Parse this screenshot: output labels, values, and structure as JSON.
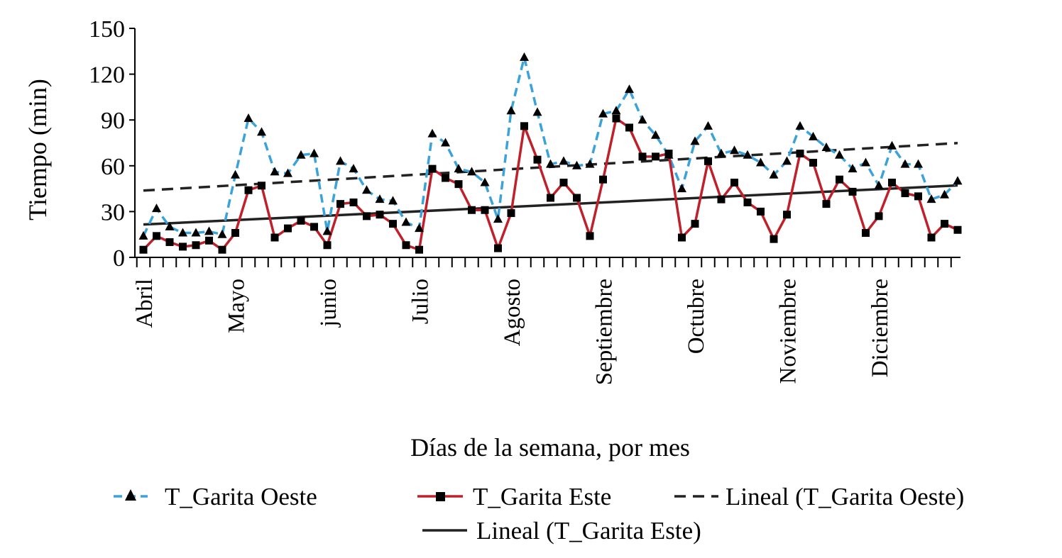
{
  "chart_data": {
    "type": "line",
    "title": "",
    "xlabel": "Días de la semana, por mes",
    "ylabel": "Tiempo (min)",
    "ylim": [
      0,
      150
    ],
    "yticks": [
      0,
      30,
      60,
      90,
      120,
      150
    ],
    "months": [
      {
        "label": "Abril",
        "index": 0
      },
      {
        "label": "Mayo",
        "index": 7
      },
      {
        "label": "junio",
        "index": 14
      },
      {
        "label": "Julio",
        "index": 21
      },
      {
        "label": "Agosto",
        "index": 28
      },
      {
        "label": "Septiembre",
        "index": 35
      },
      {
        "label": "Octubre",
        "index": 42
      },
      {
        "label": "Noviembre",
        "index": 49
      },
      {
        "label": "Diciembre",
        "index": 56
      }
    ],
    "series": [
      {
        "name": "T_Garita Oeste",
        "color": "#3ba3d9",
        "values": [
          14,
          32,
          20,
          16,
          16,
          17,
          15,
          54,
          91,
          82,
          56,
          55,
          67,
          68,
          17,
          63,
          58,
          44,
          38,
          37,
          23,
          19,
          81,
          75,
          58,
          56,
          49,
          25,
          96,
          131,
          95,
          61,
          63,
          60,
          61,
          94,
          96,
          110,
          90,
          80,
          67,
          45,
          76,
          86,
          68,
          70,
          67,
          62,
          54,
          63,
          86,
          79,
          72,
          67,
          58,
          62,
          47,
          73,
          61,
          61,
          38,
          41,
          50
        ]
      },
      {
        "name": "T_Garita Este",
        "color": "#c0202a",
        "values": [
          5,
          14,
          10,
          7,
          8,
          11,
          5,
          16,
          44,
          47,
          13,
          19,
          24,
          20,
          8,
          35,
          36,
          27,
          28,
          22,
          8,
          5,
          58,
          52,
          48,
          31,
          31,
          6,
          29,
          86,
          64,
          39,
          49,
          39,
          14,
          51,
          91,
          85,
          66,
          66,
          68,
          13,
          22,
          63,
          38,
          49,
          36,
          30,
          12,
          28,
          68,
          62,
          35,
          51,
          43,
          16,
          27,
          49,
          42,
          40,
          13,
          22,
          18
        ]
      }
    ],
    "trendlines": [
      {
        "name": "Lineal (T_Garita Oeste)",
        "of": "T_Garita Oeste",
        "color": "#222222",
        "dash": "dashed"
      },
      {
        "name": "Lineal (T_Garita Este)",
        "of": "T_Garita Este",
        "color": "#222222",
        "dash": "solid"
      }
    ],
    "legend": {
      "position": "bottom",
      "entries": [
        {
          "label": "T_Garita Oeste",
          "marker": "triangle",
          "line": "dashed",
          "color": "#3ba3d9"
        },
        {
          "label": "T_Garita Este",
          "marker": "square",
          "line": "solid",
          "color": "#c0202a"
        },
        {
          "label": "Lineal (T_Garita Oeste)",
          "marker": "none",
          "line": "dashed",
          "color": "#222222"
        },
        {
          "label": "Lineal (T_Garita Este)",
          "marker": "none",
          "line": "solid",
          "color": "#222222"
        }
      ]
    }
  }
}
